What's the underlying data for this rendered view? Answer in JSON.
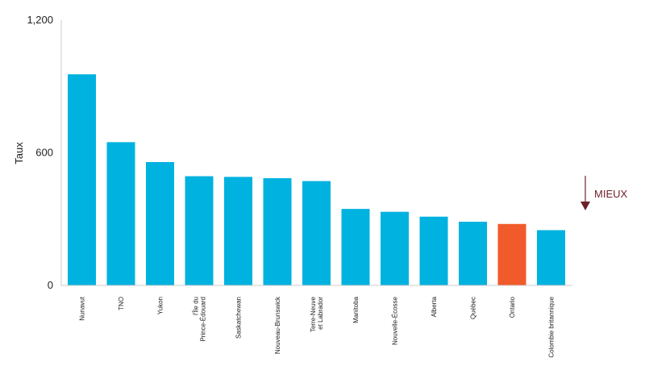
{
  "chart_data": {
    "type": "bar",
    "title": "",
    "xlabel": "",
    "ylabel": "Taux",
    "ylim": [
      0,
      1200
    ],
    "yticks": [
      "0",
      "600",
      "1,200"
    ],
    "yticks_values": [
      0,
      600,
      1200
    ],
    "grid": false,
    "categories": [
      "Nunavut",
      "TNO",
      "Yukon",
      "l'Île du\nPrince-Édouard",
      "Saskatchewan",
      "Nouveau-Brunswick",
      "Terre-Neuve\net Labrador",
      "Manitoba",
      "Nouvelle-Écosse",
      "Alberta",
      "Québec",
      "Ontario",
      "Colombie britannique"
    ],
    "values": [
      955,
      648,
      558,
      494,
      491,
      485,
      472,
      346,
      333,
      311,
      288,
      278,
      250
    ],
    "highlight_index": 11,
    "colors": {
      "bar": "#00b2e0",
      "highlight": "#f15a2b",
      "axis": "#cccccc",
      "annotation": "#6d1f2a"
    },
    "annotation": {
      "label": "MIEUX",
      "icon": "down-arrow-icon"
    }
  }
}
